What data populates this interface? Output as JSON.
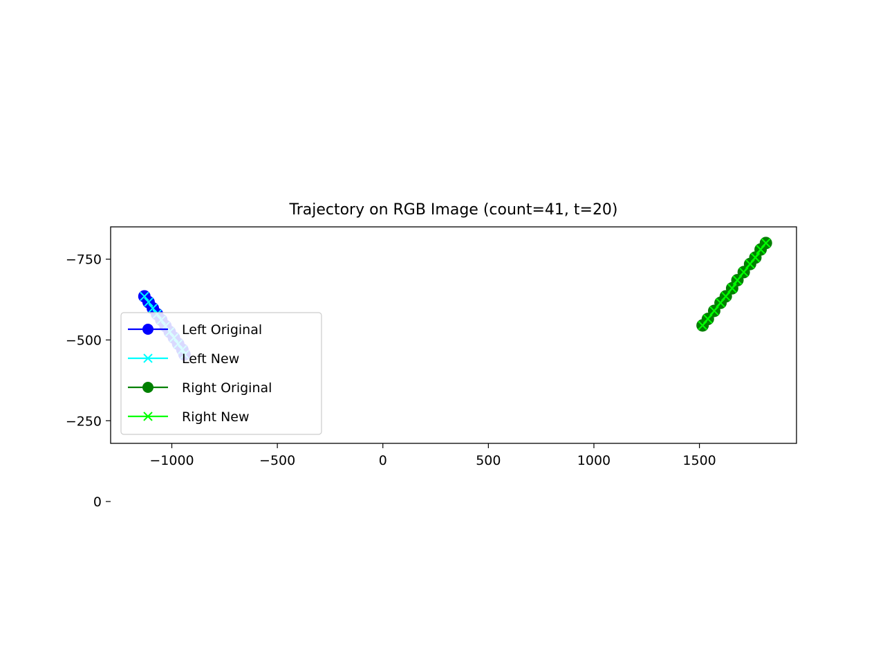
{
  "chart_data": {
    "type": "line",
    "title": "Trajectory on RGB Image (count=41, t=20)",
    "xlabel": "",
    "ylabel": "",
    "xlim": [
      -1290,
      1960
    ],
    "ylim": [
      -180,
      -850
    ],
    "y_inverted": true,
    "grid": false,
    "legend_position": "lower-left",
    "x_ticks": [
      -1000,
      -500,
      0,
      500,
      1000,
      1500
    ],
    "x_tick_labels": [
      "−1000",
      "−500",
      "0",
      "500",
      "1000",
      "1500"
    ],
    "y_ticks": [
      -750,
      -500,
      -250,
      0
    ],
    "y_tick_labels": [
      "−750",
      "−500",
      "−250",
      "0"
    ],
    "background_image": {
      "extent_x": [
        0,
        320
      ],
      "extent_y": [
        0,
        -180
      ]
    },
    "series": [
      {
        "name": "Left Original",
        "color": "#0000ff",
        "marker": "circle",
        "x": [
          -1130,
          -1110,
          -1090,
          -1070,
          -1050,
          -1030,
          -1010,
          -990,
          -970,
          -950,
          -940
        ],
        "y": [
          -635,
          -617,
          -598,
          -580,
          -562,
          -543,
          -525,
          -507,
          -488,
          -470,
          -455
        ]
      },
      {
        "name": "Left New",
        "color": "#00ffff",
        "marker": "x",
        "x": [
          -1130,
          -1110,
          -1090,
          -1070,
          -1050,
          -1030,
          -1010,
          -990,
          -970,
          -950,
          -940
        ],
        "y": [
          -635,
          -617,
          -598,
          -580,
          -562,
          -543,
          -525,
          -507,
          -488,
          -470,
          -455
        ]
      },
      {
        "name": "Right Original",
        "color": "#008000",
        "marker": "circle",
        "x": [
          1515,
          1540,
          1570,
          1600,
          1625,
          1655,
          1680,
          1710,
          1740,
          1765,
          1790,
          1815
        ],
        "y": [
          -545,
          -565,
          -590,
          -615,
          -635,
          -660,
          -685,
          -710,
          -735,
          -755,
          -780,
          -800
        ]
      },
      {
        "name": "Right New",
        "color": "#00ff00",
        "marker": "x",
        "x": [
          1515,
          1540,
          1570,
          1600,
          1625,
          1655,
          1680,
          1710,
          1740,
          1765,
          1790,
          1815
        ],
        "y": [
          -545,
          -565,
          -590,
          -615,
          -635,
          -660,
          -685,
          -710,
          -735,
          -755,
          -780,
          -800
        ]
      }
    ]
  }
}
